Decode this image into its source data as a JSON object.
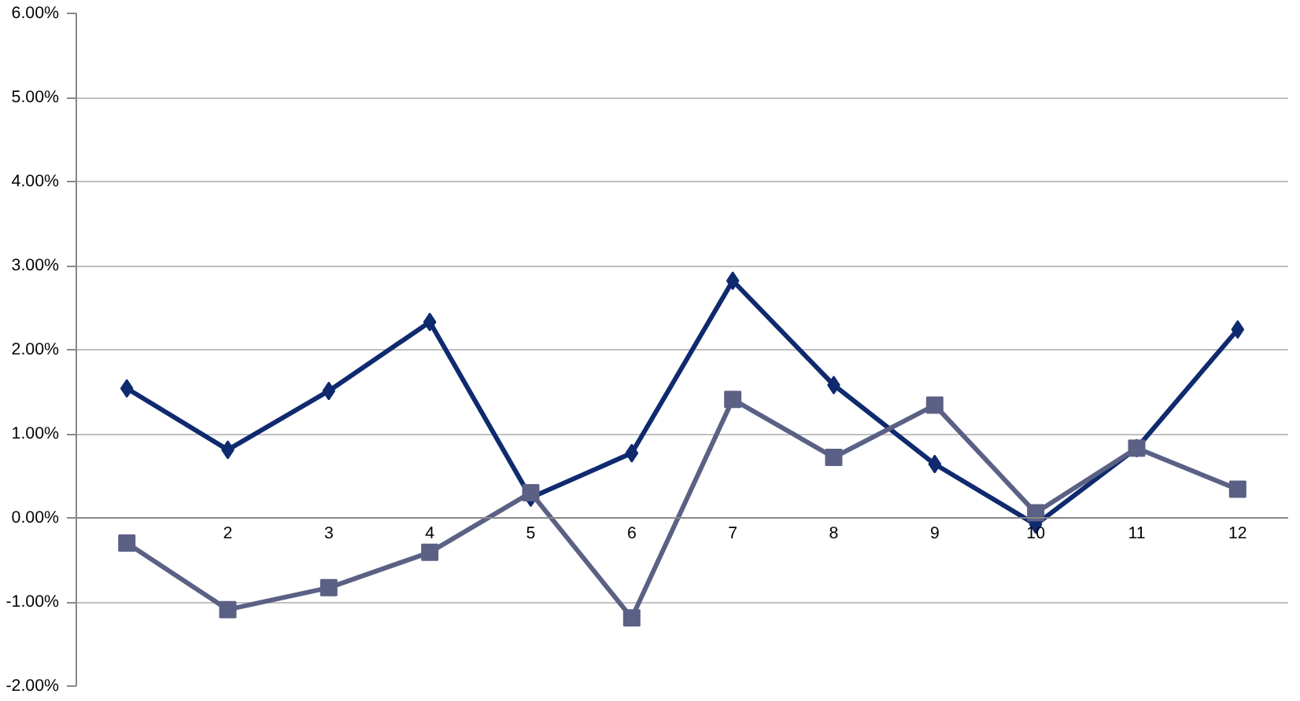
{
  "chart_data": {
    "type": "line",
    "categories": [
      null,
      "2",
      "3",
      "4",
      "5",
      "6",
      "7",
      "8",
      "9",
      "10",
      "11",
      "12"
    ],
    "series": [
      {
        "color": "#0f2a6e",
        "marker": "diamond",
        "values": [
          1.54,
          0.81,
          1.51,
          2.33,
          0.24,
          0.77,
          2.82,
          1.58,
          0.64,
          -0.08,
          0.83,
          2.24
        ]
      },
      {
        "color": "#5b6185",
        "marker": "square",
        "values": [
          -0.3,
          -1.09,
          -0.83,
          -0.41,
          0.3,
          -1.19,
          1.41,
          0.72,
          1.34,
          0.06,
          0.83,
          0.34
        ]
      }
    ],
    "ylim": [
      -2,
      6
    ],
    "yticks": [
      {
        "value": -2,
        "label": "-2.00%"
      },
      {
        "value": -1,
        "label": "-1.00%"
      },
      {
        "value": 0,
        "label": "0.00%"
      },
      {
        "value": 1,
        "label": "1.00%"
      },
      {
        "value": 2,
        "label": "2.00%"
      },
      {
        "value": 3,
        "label": "3.00%"
      },
      {
        "value": 4,
        "label": "4.00%"
      },
      {
        "value": 5,
        "label": "5.00%"
      },
      {
        "value": 6,
        "label": "6.00%"
      }
    ],
    "grid": "y",
    "line_style": "solid"
  }
}
